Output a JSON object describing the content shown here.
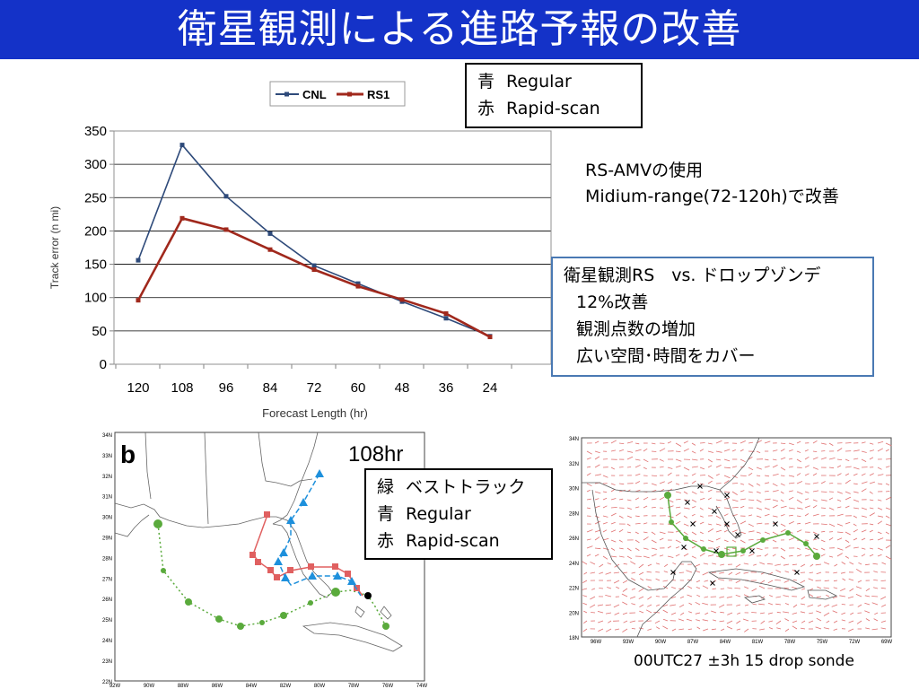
{
  "slide": {
    "title": "衛星観測による進路予報の改善"
  },
  "legend_top": {
    "rows": [
      {
        "key": "青",
        "value": "Regular"
      },
      {
        "key": "赤",
        "value": "Rapid-scan"
      }
    ]
  },
  "rs_note": {
    "line1": "RS-AMVの使用",
    "line2": "Midium-range(72-120h)で改善"
  },
  "info_box": {
    "line1": "衛星観測RS　vs. ドロップゾンデ",
    "line2": "12%改善",
    "line3": "観測点数の増加",
    "line4": "広い空間･時間をカバー"
  },
  "legend_mid": {
    "rows": [
      {
        "key": "緑",
        "value": "ベストトラック"
      },
      {
        "key": "青",
        "value": "Regular"
      },
      {
        "key": "赤",
        "value": "Rapid-scan"
      }
    ]
  },
  "track_map": {
    "panel_label": "b",
    "time_label": "108hr",
    "lat_labels": [
      "34N",
      "33N",
      "32N",
      "31N",
      "30N",
      "29N",
      "28N",
      "27N",
      "26N",
      "25N",
      "24N",
      "23N",
      "22N"
    ],
    "lon_labels": [
      "92W",
      "90W",
      "88W",
      "86W",
      "84W",
      "82W",
      "80W",
      "78W",
      "76W",
      "74W"
    ]
  },
  "wind_map": {
    "lat_labels": [
      "34N",
      "32N",
      "30N",
      "28N",
      "26N",
      "24N",
      "22N",
      "20N",
      "18N"
    ],
    "lon_labels": [
      "96W",
      "93W",
      "90W",
      "87W",
      "84W",
      "81W",
      "78W",
      "75W",
      "72W",
      "69W"
    ]
  },
  "caption": "00UTC27 ±3h 15 drop sonde",
  "colors": {
    "title_bar": "#1432c8",
    "cnl": "#2e4a7a",
    "rs1": "#a0281c",
    "best_track": "#5aaa3c",
    "regular": "#1e90dc",
    "rapid_scan": "#e06060"
  },
  "chart_data": {
    "type": "line",
    "categories": [
      "120",
      "108",
      "96",
      "84",
      "72",
      "60",
      "48",
      "36",
      "24"
    ],
    "series": [
      {
        "name": "CNL",
        "values": [
          156,
          329,
          252,
          196,
          148,
          121,
          94,
          69,
          42
        ]
      },
      {
        "name": "RS1",
        "values": [
          96,
          219,
          202,
          172,
          142,
          117,
          97,
          76,
          41
        ]
      }
    ],
    "xlabel": "Forecast Length (hr)",
    "ylabel": "Track error (n mi)",
    "ylim": [
      0,
      350
    ],
    "yticks": [
      "0",
      "50",
      "100",
      "150",
      "200",
      "250",
      "300",
      "350"
    ],
    "legend_position": "top"
  }
}
